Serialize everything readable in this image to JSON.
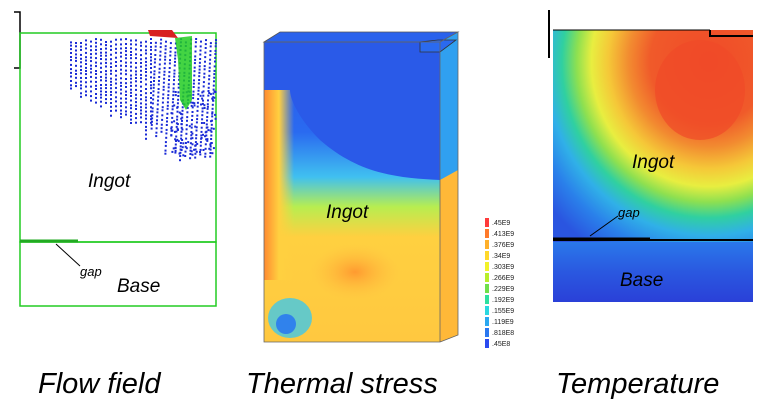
{
  "panels": {
    "flow": {
      "caption": "Flow field",
      "ingot_label": "Ingot",
      "base_label": "Base",
      "gap_label": "gap"
    },
    "stress": {
      "caption": "Thermal stress",
      "ingot_label": "Ingot",
      "legend": {
        "labels": [
          ".45E9",
          ".413E9",
          ".376E9",
          ".34E9",
          ".303E9",
          ".266E9",
          ".229E9",
          ".192E9",
          ".155E9",
          ".119E9",
          ".818E8",
          ".45E8"
        ],
        "colors": [
          "#ff3b3b",
          "#ff7a2a",
          "#ffb02a",
          "#ffd82a",
          "#f2f22a",
          "#b8ee2a",
          "#6fe04a",
          "#2ee0a0",
          "#2ad8e0",
          "#2aa8f0",
          "#2a78f0",
          "#2a4af0"
        ]
      }
    },
    "temperature": {
      "caption": "Temperature",
      "ingot_label": "Ingot",
      "base_label": "Base",
      "gap_label": "gap"
    }
  },
  "colors": {
    "outline_green": "#22cc22",
    "vector_blue": "#1a2ad6",
    "hot_red": "#f0552a",
    "cold_blue": "#2a55e0"
  }
}
